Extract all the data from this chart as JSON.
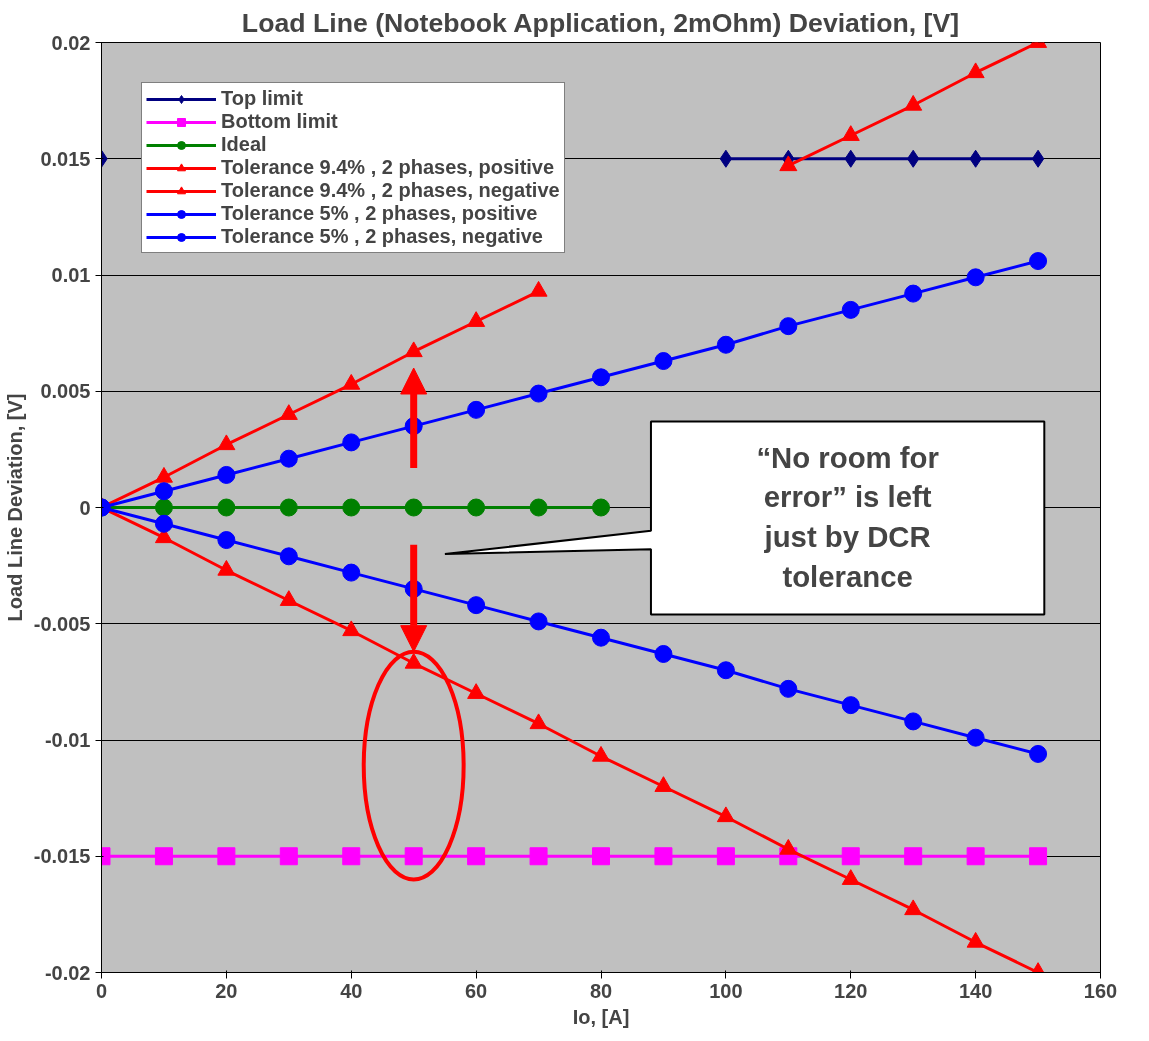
{
  "chart_data": {
    "type": "line",
    "title": "Load Line (Notebook Application, 2mOhm) Deviation, [V]",
    "xlabel": "Io, [A]",
    "ylabel": "Load Line Deviation, [V]",
    "x": [
      0,
      10,
      20,
      30,
      40,
      50,
      60,
      70,
      80,
      90,
      100,
      110,
      120,
      130,
      140,
      150
    ],
    "series": [
      {
        "name": "Top limit",
        "color": "#000080",
        "marker": "diamond",
        "values": [
          0.015,
          null,
          null,
          null,
          null,
          null,
          null,
          null,
          null,
          null,
          0.015,
          0.015,
          0.015,
          0.015,
          0.015,
          0.015
        ]
      },
      {
        "name": "Bottom limit",
        "color": "#ff00ff",
        "marker": "square",
        "values": [
          -0.015,
          -0.015,
          -0.015,
          -0.015,
          -0.015,
          -0.015,
          -0.015,
          -0.015,
          -0.015,
          -0.015,
          -0.015,
          -0.015,
          -0.015,
          -0.015,
          -0.015,
          -0.015
        ]
      },
      {
        "name": "Ideal",
        "color": "#008000",
        "marker": "circle",
        "values": [
          0,
          0,
          0,
          0,
          0,
          0,
          0,
          0,
          0,
          null,
          null,
          null,
          null,
          null,
          null,
          null
        ]
      },
      {
        "name": "Tolerance 9.4% , 2 phases, positive",
        "color": "#ff0000",
        "marker": "triangle",
        "values": [
          0,
          0.0013,
          0.0027,
          0.004,
          0.0053,
          0.0067,
          0.008,
          0.0093,
          null,
          null,
          null,
          0.0147,
          0.016,
          0.0173,
          0.0187,
          0.02
        ]
      },
      {
        "name": "Tolerance 9.4% , 2 phases, negative",
        "color": "#ff0000",
        "marker": "triangle",
        "values": [
          0,
          -0.0013,
          -0.0027,
          -0.004,
          -0.0053,
          -0.0067,
          -0.008,
          -0.0093,
          -0.0107,
          -0.012,
          -0.0133,
          -0.0147,
          -0.016,
          -0.0173,
          -0.0187,
          -0.02
        ]
      },
      {
        "name": "Tolerance 5% , 2 phases, positive",
        "color": "#0000ff",
        "marker": "circle",
        "values": [
          0,
          0.0007,
          0.0014,
          0.0021,
          0.0028,
          0.0035,
          0.0042,
          0.0049,
          0.0056,
          0.0063,
          0.007,
          0.0078,
          0.0085,
          0.0092,
          0.0099,
          0.0106
        ]
      },
      {
        "name": "Tolerance 5% , 2 phases, negative",
        "color": "#0000ff",
        "marker": "circle",
        "values": [
          0,
          -0.0007,
          -0.0014,
          -0.0021,
          -0.0028,
          -0.0035,
          -0.0042,
          -0.0049,
          -0.0056,
          -0.0063,
          -0.007,
          -0.0078,
          -0.0085,
          -0.0092,
          -0.0099,
          -0.0106
        ]
      }
    ],
    "xlim": [
      0,
      160
    ],
    "ylim": [
      -0.02,
      0.02
    ],
    "xticks": [
      0,
      20,
      40,
      60,
      80,
      100,
      120,
      140,
      160
    ],
    "yticks": [
      -0.02,
      -0.015,
      -0.01,
      -0.005,
      0,
      0.005,
      0.01,
      0.015,
      0.02
    ],
    "grid": "y",
    "legend": "top left",
    "line_style": "solid",
    "annotations": [
      "“No room for error” is left just by DCR tolerance"
    ]
  }
}
